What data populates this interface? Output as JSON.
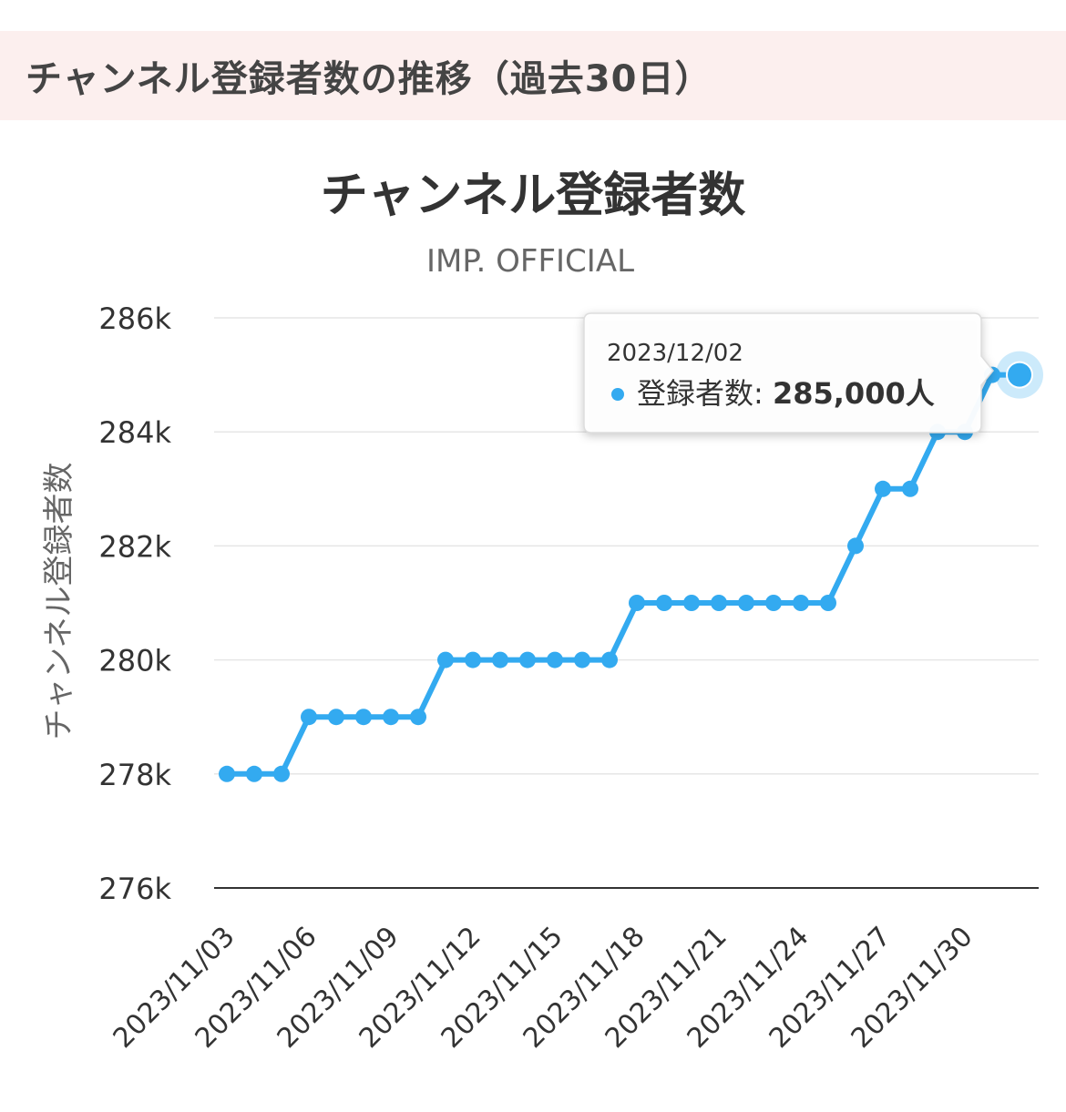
{
  "section": {
    "title": "チャンネル登録者数の推移（過去30日）"
  },
  "colors": {
    "header_bg": "#fcefee",
    "series": "#33aaf0",
    "grid": "#e6e6e6",
    "axis_line": "#333333",
    "text": "#333333"
  },
  "tooltip": {
    "date": "2023/12/02",
    "series_label": "登録者数: ",
    "value_text": "285,000人"
  },
  "chart_data": {
    "type": "line",
    "title": "チャンネル登録者数",
    "subtitle": "IMP. OFFICIAL",
    "xlabel": "",
    "ylabel": "チャンネル登録者数",
    "ylim": [
      276000,
      286000
    ],
    "yticks": [
      276000,
      278000,
      280000,
      282000,
      284000,
      286000
    ],
    "ytick_labels": [
      "276k",
      "278k",
      "280k",
      "282k",
      "284k",
      "286k"
    ],
    "grid": true,
    "legend": "none",
    "x": [
      "2023/11/03",
      "2023/11/04",
      "2023/11/05",
      "2023/11/06",
      "2023/11/07",
      "2023/11/08",
      "2023/11/09",
      "2023/11/10",
      "2023/11/11",
      "2023/11/12",
      "2023/11/13",
      "2023/11/14",
      "2023/11/15",
      "2023/11/16",
      "2023/11/17",
      "2023/11/18",
      "2023/11/19",
      "2023/11/20",
      "2023/11/21",
      "2023/11/22",
      "2023/11/23",
      "2023/11/24",
      "2023/11/25",
      "2023/11/26",
      "2023/11/27",
      "2023/11/28",
      "2023/11/29",
      "2023/11/30",
      "2023/12/01",
      "2023/12/02"
    ],
    "xtick_labels": [
      "2023/11/03",
      "2023/11/06",
      "2023/11/09",
      "2023/11/12",
      "2023/11/15",
      "2023/11/18",
      "2023/11/21",
      "2023/11/24",
      "2023/11/27",
      "2023/11/30"
    ],
    "series": [
      {
        "name": "登録者数",
        "values": [
          278000,
          278000,
          278000,
          279000,
          279000,
          279000,
          279000,
          279000,
          280000,
          280000,
          280000,
          280000,
          280000,
          280000,
          280000,
          281000,
          281000,
          281000,
          281000,
          281000,
          281000,
          281000,
          281000,
          282000,
          283000,
          283000,
          284000,
          284000,
          285000,
          285000
        ]
      }
    ]
  }
}
